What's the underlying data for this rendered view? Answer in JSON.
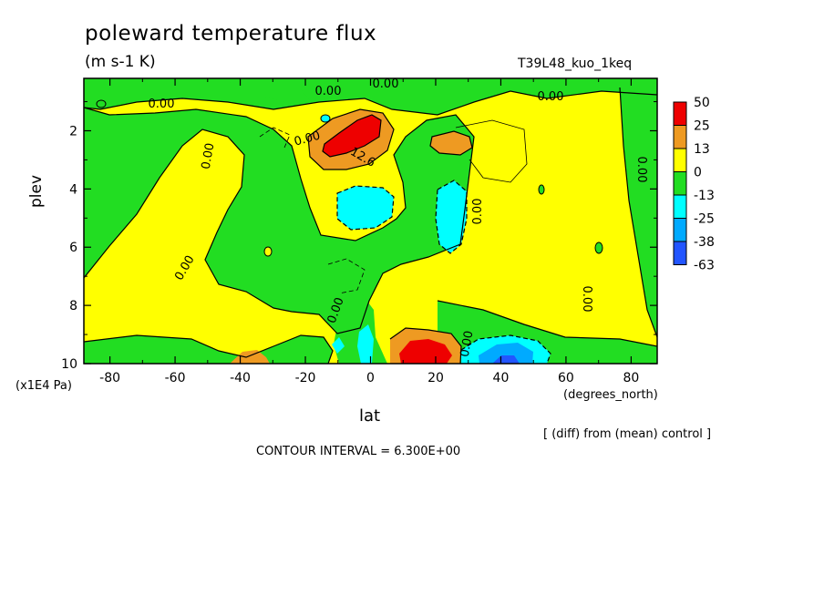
{
  "chart_data": {
    "type": "heatmap",
    "title": "poleward temperature flux",
    "units": "(m s-1 K)",
    "run_id": "T39L48_kuo_1keq",
    "xlabel": "lat",
    "x_units": "(degrees_north)",
    "ylabel": "plev",
    "y_units": "(x1E4 Pa)",
    "xlim": [
      -88,
      88
    ],
    "ylim": [
      0.2,
      10
    ],
    "y_inverted": true,
    "x_ticks": [
      "-80",
      "-60",
      "-40",
      "-20",
      "0",
      "20",
      "40",
      "60",
      "80"
    ],
    "y_ticks": [
      "2",
      "4",
      "6",
      "8",
      "10"
    ],
    "colorbar": {
      "labels": [
        "50",
        "25",
        "13",
        "0",
        "-13",
        "-25",
        "-38",
        "-63"
      ],
      "colors": [
        "#ee0000",
        "#ee9a22",
        "#ffff00",
        "#22dd22",
        "#00ffff",
        "#00aaff",
        "#2255ff"
      ]
    },
    "contour_labels": [
      "0.00",
      "0.00",
      "0.00",
      "0.00",
      "0.00",
      "12.6",
      "0.00",
      "0.00",
      "0.00",
      "0.00",
      "0.00",
      "0.00",
      "0.00"
    ],
    "note": "[ (diff) from (mean) control ]",
    "contour_interval": "CONTOUR INTERVAL = 6.300E+00"
  }
}
